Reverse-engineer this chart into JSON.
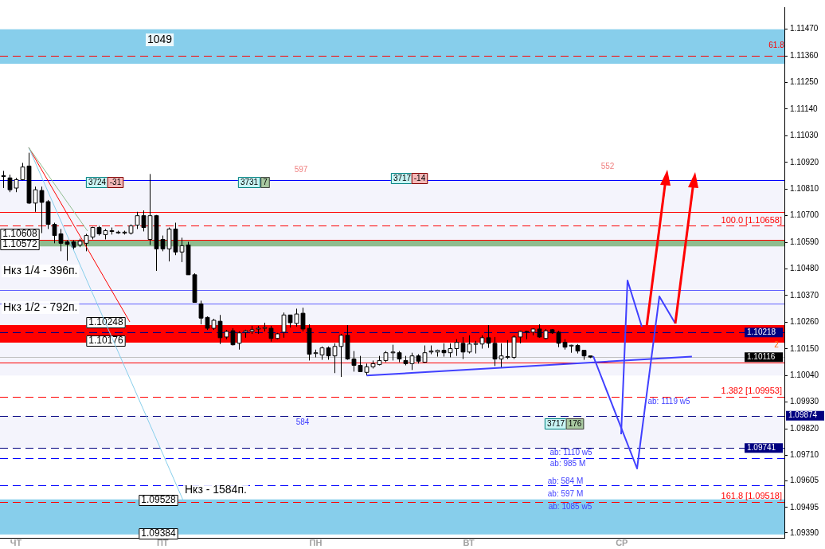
{
  "chart_data": {
    "type": "candlestick",
    "categories": [
      null,
      null,
      "ЧТ",
      null,
      null,
      null,
      null,
      null,
      null,
      null,
      null,
      null,
      null,
      null,
      null,
      null,
      null,
      null,
      null,
      null,
      null,
      null,
      null,
      null,
      null,
      "ПТ",
      null,
      null,
      null,
      null,
      null,
      null,
      null,
      null,
      null,
      null,
      null,
      null,
      null,
      null,
      null,
      null,
      null,
      null,
      null,
      null,
      null,
      null,
      null,
      "ПН",
      null,
      null,
      null,
      null,
      null,
      null,
      null,
      null,
      null,
      null,
      null,
      null,
      null,
      null,
      null,
      null,
      null,
      null,
      null,
      null,
      null,
      null,
      null,
      "ВТ",
      null,
      null,
      null,
      null,
      null,
      null,
      null,
      null,
      null,
      null,
      null,
      null,
      null,
      null,
      null,
      null,
      null,
      null,
      null,
      null,
      null,
      null,
      null,
      "СР",
      null,
      null,
      null,
      null,
      null,
      null,
      null,
      null,
      null,
      null,
      null,
      null,
      null,
      null,
      null,
      null,
      null,
      null,
      null,
      null,
      null,
      null,
      null,
      null,
      null
    ],
    "ohlc": [
      [
        1.10862,
        1.10885,
        1.10814,
        1.10865
      ],
      [
        1.10856,
        1.10869,
        1.10797,
        1.10807
      ],
      [
        1.10814,
        1.10856,
        1.10797,
        1.10849
      ],
      [
        1.10849,
        1.10918,
        1.10846,
        1.10901
      ],
      [
        1.10905,
        1.1096,
        1.10748,
        1.10752
      ],
      [
        1.10752,
        1.1082,
        1.10716,
        1.10807
      ],
      [
        1.10804,
        1.1082,
        1.10628,
        1.10755
      ],
      [
        1.10758,
        1.10765,
        1.10645,
        1.10664
      ],
      [
        1.10664,
        1.10671,
        1.10586,
        1.10618
      ],
      [
        1.10625,
        1.10645,
        1.10553,
        1.10586
      ],
      [
        1.10592,
        1.10599,
        1.10514,
        1.10582
      ],
      [
        1.10592,
        1.10599,
        1.1056,
        1.1057
      ],
      [
        1.10579,
        1.10605,
        1.1057,
        1.10595
      ],
      [
        1.10586,
        1.10625,
        1.10553,
        1.10618
      ],
      [
        1.10612,
        1.10654,
        1.10602,
        1.10651
      ],
      [
        1.10651,
        1.10658,
        1.10618,
        1.10625
      ],
      [
        1.10622,
        1.10645,
        1.10602,
        1.10638
      ],
      [
        1.10635,
        1.10651,
        1.10622,
        1.10638
      ],
      [
        1.10632,
        1.10638,
        1.10625,
        1.10632
      ],
      [
        1.10628,
        1.10638,
        1.10622,
        1.10632
      ],
      [
        1.10628,
        1.10664,
        1.10622,
        1.10658
      ],
      [
        1.10661,
        1.10716,
        1.10645,
        1.107
      ],
      [
        1.107,
        1.10722,
        1.10635,
        1.10651
      ],
      [
        1.10602,
        1.10872,
        1.10579,
        1.107
      ],
      [
        1.107,
        1.10703,
        1.10472,
        1.10563
      ],
      [
        1.10602,
        1.10618,
        1.10553,
        1.10563
      ],
      [
        1.10563,
        1.10651,
        1.10511,
        1.10645
      ],
      [
        1.10645,
        1.10671,
        1.10537,
        1.1055
      ],
      [
        1.1055,
        1.10609,
        1.10508,
        1.10576
      ],
      [
        1.10579,
        1.10592,
        1.10456,
        1.10456
      ],
      [
        1.10456,
        1.10462,
        1.10342,
        1.10342
      ],
      [
        1.10336,
        1.10349,
        1.10251,
        1.10277
      ],
      [
        1.1028,
        1.10284,
        1.10228,
        1.10235
      ],
      [
        1.10235,
        1.10274,
        1.10228,
        1.10268
      ],
      [
        1.10264,
        1.1029,
        1.1017,
        1.10196
      ],
      [
        1.10199,
        1.10228,
        1.1019,
        1.10222
      ],
      [
        1.10225,
        1.10235,
        1.10164,
        1.10167
      ],
      [
        1.10173,
        1.10222,
        1.10147,
        1.10216
      ],
      [
        1.10219,
        1.10229,
        1.10196,
        1.10225
      ],
      [
        1.10222,
        1.10245,
        1.10212,
        1.10229
      ],
      [
        1.10232,
        1.10245,
        1.10212,
        1.10235
      ],
      [
        1.10235,
        1.10258,
        1.10222,
        1.10238
      ],
      [
        1.10235,
        1.10245,
        1.1018,
        1.10193
      ],
      [
        1.10193,
        1.10216,
        1.1019,
        1.10212
      ],
      [
        1.10219,
        1.103,
        1.10196,
        1.1029
      ],
      [
        1.1029,
        1.1029,
        1.10238,
        1.10258
      ],
      [
        1.10255,
        1.10316,
        1.10242,
        1.10294
      ],
      [
        1.10297,
        1.1032,
        1.10222,
        1.10232
      ],
      [
        1.10235,
        1.10251,
        1.10102,
        1.10128
      ],
      [
        1.10134,
        1.10147,
        1.10115,
        1.10134
      ],
      [
        1.10125,
        1.1016,
        1.10105,
        1.10154
      ],
      [
        1.10154,
        1.1016,
        1.10105,
        1.10121
      ],
      [
        1.10121,
        1.10173,
        1.1005,
        1.1016
      ],
      [
        1.1016,
        1.10212,
        1.10034,
        1.10206
      ],
      [
        1.10206,
        1.10248,
        1.10105,
        1.10108
      ],
      [
        1.10108,
        1.10141,
        1.10056,
        1.10082
      ],
      [
        1.10082,
        1.10121,
        1.10056,
        1.10056
      ],
      [
        1.10053,
        1.10089,
        1.1004,
        1.10076
      ],
      [
        1.10076,
        1.10102,
        1.10069,
        1.10089
      ],
      [
        1.10085,
        1.10121,
        1.10082,
        1.10102
      ],
      [
        1.10102,
        1.10141,
        1.10095,
        1.10134
      ],
      [
        1.10134,
        1.10167,
        1.10102,
        1.10137
      ],
      [
        1.10134,
        1.10141,
        1.10095,
        1.10108
      ],
      [
        1.10102,
        1.10121,
        1.10082,
        1.10089
      ],
      [
        1.10089,
        1.10134,
        1.10063,
        1.10121
      ],
      [
        1.10121,
        1.10128,
        1.10089,
        1.10099
      ],
      [
        1.10095,
        1.10164,
        1.10092,
        1.10134
      ],
      [
        1.10137,
        1.10164,
        1.10128,
        1.10141
      ],
      [
        1.10137,
        1.10147,
        1.10118,
        1.10144
      ],
      [
        1.10144,
        1.10173,
        1.10118,
        1.10134
      ],
      [
        1.10134,
        1.10173,
        1.10115,
        1.10151
      ],
      [
        1.10151,
        1.1019,
        1.10121,
        1.10177
      ],
      [
        1.10173,
        1.10199,
        1.10108,
        1.10137
      ],
      [
        1.10137,
        1.10206,
        1.10131,
        1.1017
      ],
      [
        1.1017,
        1.10183,
        1.10131,
        1.10172
      ],
      [
        1.1017,
        1.10206,
        1.10151,
        1.10196
      ],
      [
        1.10196,
        1.10248,
        1.10154,
        1.10173
      ],
      [
        1.10173,
        1.10199,
        1.10079,
        1.10108
      ],
      [
        1.10108,
        1.10173,
        1.10072,
        1.10121
      ],
      [
        1.10115,
        1.10186,
        1.10108,
        1.10118
      ],
      [
        1.10115,
        1.10206,
        1.10108,
        1.10199
      ],
      [
        1.10199,
        1.10225,
        1.10173,
        1.10222
      ],
      [
        1.10222,
        1.10225,
        1.1019,
        1.10219
      ],
      [
        1.10219,
        1.10235,
        1.10206,
        1.10232
      ],
      [
        1.10232,
        1.10251,
        1.10196,
        1.10199
      ],
      [
        1.10193,
        1.10232,
        1.1019,
        1.10225
      ],
      [
        1.10229,
        1.10232,
        1.10212,
        1.10216
      ],
      [
        1.10219,
        1.10225,
        1.10157,
        1.10173
      ],
      [
        1.10177,
        1.1019,
        1.10147,
        1.10157
      ],
      [
        1.10164,
        1.10167,
        1.10134,
        1.10165
      ],
      [
        1.10164,
        1.1017,
        1.10131,
        1.10141
      ],
      [
        1.10144,
        1.10144,
        1.10105,
        1.10121
      ],
      [
        1.10121,
        1.10121,
        1.10112,
        1.10116
      ],
      null,
      null,
      null,
      null,
      null,
      null,
      null,
      null,
      null,
      null,
      null,
      null,
      null,
      null,
      null,
      null,
      null,
      null,
      null,
      null,
      null,
      null,
      null,
      null,
      null,
      null,
      null,
      null,
      null,
      null
    ],
    "series": [
      {
        "type": "line",
        "color": "#4040ff",
        "values": [
          null,
          null,
          null,
          null,
          null,
          null,
          null,
          null,
          null,
          null,
          null,
          null,
          null,
          null,
          null,
          null,
          null,
          null,
          null,
          null,
          null,
          null,
          null,
          null,
          null,
          null,
          null,
          null,
          null,
          null,
          null,
          null,
          null,
          null,
          null,
          null,
          null,
          null,
          null,
          null,
          null,
          null,
          null,
          null,
          null,
          null,
          null,
          null,
          null,
          null,
          null,
          null,
          null,
          null,
          null,
          null,
          null,
          1.1004,
          null,
          null,
          null,
          null,
          null,
          null,
          null,
          null,
          null,
          null,
          null,
          null,
          null,
          null,
          null,
          null,
          null,
          null,
          null,
          null,
          null,
          null,
          null,
          null,
          null,
          null,
          null,
          null,
          null,
          null,
          null,
          null,
          null,
          null,
          null,
          null,
          null,
          null,
          null,
          null,
          null,
          null,
          null,
          null,
          null,
          null,
          null,
          null,
          null,
          null,
          1.10118,
          null,
          null,
          null,
          null,
          null,
          null,
          null,
          null,
          null,
          null,
          null,
          null,
          null,
          null
        ]
      }
    ],
    "ylim": [
      1.09367,
      1.11561
    ],
    "yticks": [
      {
        "value": 1.1147,
        "label": "1.11470"
      },
      {
        "value": 1.1136,
        "label": "1.11360"
      },
      {
        "value": 1.1125,
        "label": "1.11250"
      },
      {
        "value": 1.1114,
        "label": "1.11140"
      },
      {
        "value": 1.1103,
        "label": "1.11030"
      },
      {
        "value": 1.1092,
        "label": "1.10920"
      },
      {
        "value": 1.1081,
        "label": "1.10810"
      },
      {
        "value": 1.107,
        "label": "1.10700"
      },
      {
        "value": 1.1059,
        "label": "1.10590"
      },
      {
        "value": 1.1048,
        "label": "1.10480"
      },
      {
        "value": 1.1037,
        "label": "1.10370"
      },
      {
        "value": 1.1026,
        "label": "1.10260"
      },
      {
        "value": 1.1015,
        "label": "1.10150"
      },
      {
        "value": 1.1004,
        "label": "1.10040"
      },
      {
        "value": 1.0993,
        "label": "1.09930"
      },
      {
        "value": 1.0982,
        "label": "1.09820"
      },
      {
        "value": 1.0971,
        "label": "1.09710"
      },
      {
        "value": 1.09605,
        "label": "1.09605"
      },
      {
        "value": 1.09495,
        "label": "1.09495"
      },
      {
        "value": 1.0939,
        "label": "1.09390"
      }
    ],
    "bands": [
      {
        "axis": "y",
        "from": 1.1004,
        "to": 1.10846,
        "color": "#f4f4fc"
      },
      {
        "axis": "y",
        "from": 1.09741,
        "to": 1.09874,
        "color": "#f4f4fc"
      },
      {
        "axis": "y",
        "from": 1.11327,
        "to": 1.1147,
        "label": "1049",
        "color": "#87ceeb"
      },
      {
        "axis": "y",
        "from": 1.10573,
        "to": 1.10599,
        "label": "Нкз 1/4 - 396п.",
        "color": "#8fbc8f"
      },
      {
        "axis": "y",
        "from": 1.10176,
        "to": 1.10248,
        "label": "Нкз 1/2 - 792п.",
        "color": "#ff0000"
      },
      {
        "axis": "y",
        "from": 1.09384,
        "to": 1.09528,
        "label": "Нкз - 1584п.",
        "color": "#87ceeb"
      }
    ],
    "ref_lines": [
      {
        "axis": "y",
        "value": 1.1136,
        "color": "#ff0000",
        "line_style": "dashed"
      },
      {
        "axis": "y",
        "value": 1.10658,
        "label": "100.0 [1.10658]",
        "color": "#ff0000",
        "line_style": "dashed"
      },
      {
        "axis": "y",
        "value": 1.09953,
        "label": "1.382 [1.09953]",
        "color": "#ff0000",
        "line_style": "dashed"
      },
      {
        "axis": "y",
        "value": 1.09518,
        "label": "161.8 [1.09518]",
        "color": "#ff0000",
        "line_style": "dashed"
      },
      {
        "axis": "y",
        "value": 1.10218,
        "label": "1.10218",
        "color": "#000080",
        "line_style": "dashed"
      },
      {
        "axis": "y",
        "value": 1.10116,
        "label": "1.10116",
        "color": "#c0c0c0",
        "line_style": "solid"
      },
      {
        "axis": "y",
        "value": 1.09874,
        "label": "1.09874",
        "color": "#000080",
        "line_style": "dashed"
      },
      {
        "axis": "y",
        "value": 1.09741,
        "label": "1.09741",
        "color": "#000080",
        "line_style": "dashed"
      },
      {
        "axis": "y",
        "value": 1.10846,
        "color": "#0000ff",
        "line_style": "solid"
      },
      {
        "axis": "y",
        "value": 1.10716,
        "color": "#ff0000",
        "line_style": "solid"
      },
      {
        "axis": "y",
        "value": 1.10599,
        "color": "#ff0000",
        "line_style": "solid"
      },
      {
        "axis": "y",
        "value": 1.10394,
        "color": "#6060ff",
        "line_style": "solid"
      },
      {
        "axis": "y",
        "value": 1.10336,
        "color": "#6060ff",
        "line_style": "solid"
      },
      {
        "axis": "y",
        "value": 1.10093,
        "color": "#ff0000",
        "line_style": "solid"
      },
      {
        "axis": "y",
        "value": 1.097,
        "color": "#0000ff",
        "line_style": "dashed"
      },
      {
        "axis": "y",
        "value": 1.09588,
        "color": "#0000ff",
        "line_style": "dashed"
      }
    ],
    "annotations": [
      "3724",
      "-31",
      "3731",
      "7",
      "3717",
      "-14",
      "597",
      "552",
      "584",
      "3717",
      "176",
      "2",
      "1.10608",
      "1.10572",
      "1.10248",
      "1.10176",
      "1.09528",
      "1.09384",
      "61.8",
      "ab: 1119 w5",
      "ab: 1110 w5",
      "ab: 985 M",
      "ab: 584 M",
      "ab: 597 M",
      "ab: 1085 w5"
    ],
    "grid": false,
    "legend": false
  }
}
